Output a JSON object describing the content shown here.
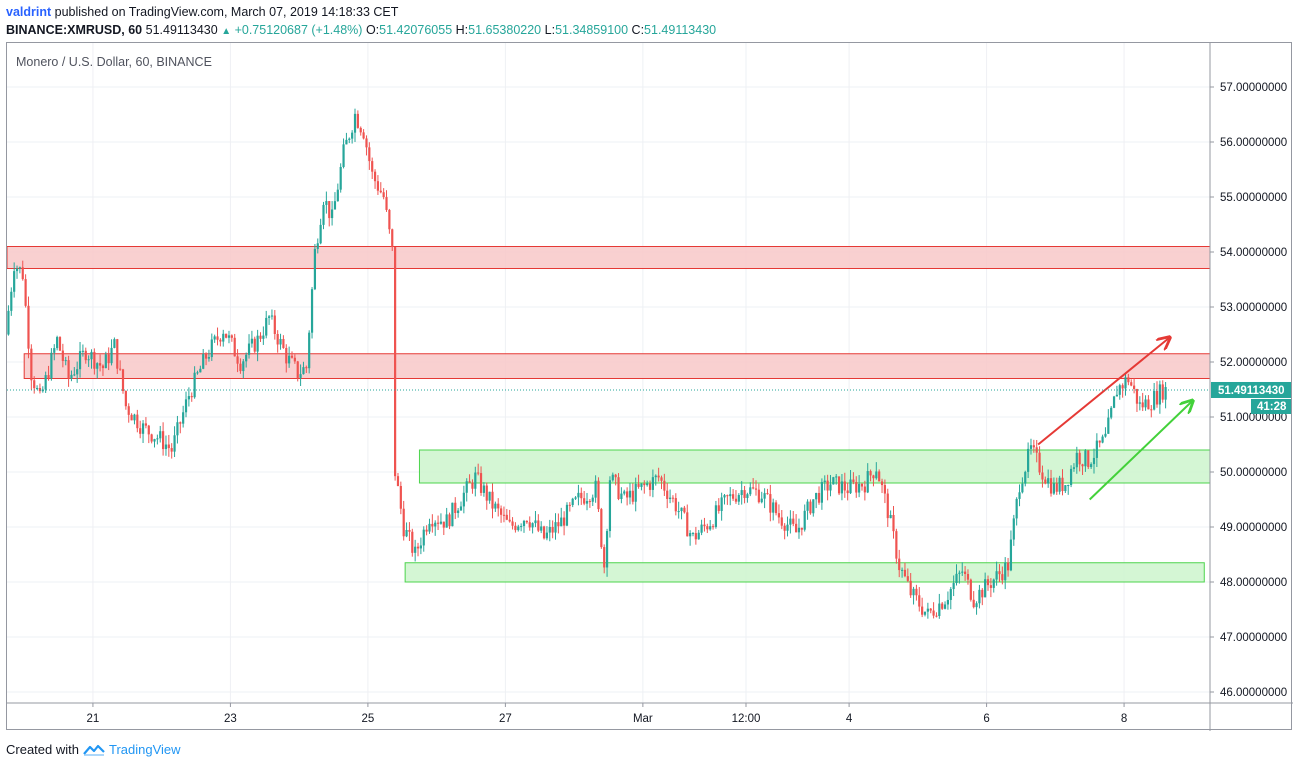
{
  "header": {
    "author": "valdrint",
    "published_text": "published on TradingView.com, March 07, 2019 14:18:33 CET",
    "symbol": "BINANCE:XMRUSD, 60",
    "last": "51.49113430",
    "change_arrow": "▲",
    "change": "+0.75120687 (+1.48%)",
    "o_label": "O:",
    "o_value": "51.42076055",
    "h_label": "H:",
    "h_value": "51.65380220",
    "l_label": "L:",
    "l_value": "51.34859100",
    "c_label": "C:",
    "c_value": "51.49113430"
  },
  "footer": {
    "created_with": "Created with",
    "brand": "TradingView",
    "logo_icon": "tradingview-logo-icon"
  },
  "chart_data": {
    "type": "candlestick",
    "title": "Monero / U.S. Dollar, 60, BINANCE",
    "y_axis": {
      "min": 45.8,
      "max": 57.8,
      "ticks": [
        46,
        47,
        48,
        49,
        50,
        51,
        52,
        53,
        54,
        55,
        56,
        57
      ],
      "tick_labels": [
        "46.00000000",
        "47.00000000",
        "48.00000000",
        "49.00000000",
        "50.00000000",
        "51.00000000",
        "52.00000000",
        "53.00000000",
        "54.00000000",
        "55.00000000",
        "56.00000000",
        "57.00000000"
      ]
    },
    "x_axis": {
      "start": "2019-02-19 18:00",
      "end": "2019-03-09 06:00",
      "ticks": [
        {
          "label": "21",
          "t": "2019-02-21 00:00"
        },
        {
          "label": "23",
          "t": "2019-02-23 00:00"
        },
        {
          "label": "25",
          "t": "2019-02-25 00:00"
        },
        {
          "label": "27",
          "t": "2019-02-27 00:00"
        },
        {
          "label": "Mar",
          "t": "2019-03-01 00:00"
        },
        {
          "label": "12:00",
          "t": "2019-03-02 12:00"
        },
        {
          "label": "4",
          "t": "2019-03-04 00:00"
        },
        {
          "label": "6",
          "t": "2019-03-06 00:00"
        },
        {
          "label": "8",
          "t": "2019-03-08 00:00"
        }
      ]
    },
    "price_path": [
      [
        "2019-02-19 18:00",
        52.5
      ],
      [
        "2019-02-19 21:00",
        53.8
      ],
      [
        "2019-02-20 00:00",
        53.6
      ],
      [
        "2019-02-20 03:00",
        51.8
      ],
      [
        "2019-02-20 06:00",
        51.3
      ],
      [
        "2019-02-20 12:00",
        52.4
      ],
      [
        "2019-02-20 16:00",
        51.7
      ],
      [
        "2019-02-20 22:00",
        52.2
      ],
      [
        "2019-02-21 04:00",
        51.9
      ],
      [
        "2019-02-21 08:00",
        52.3
      ],
      [
        "2019-02-21 12:00",
        51.2
      ],
      [
        "2019-02-21 18:00",
        50.8
      ],
      [
        "2019-02-22 00:00",
        50.6
      ],
      [
        "2019-02-22 04:00",
        50.4
      ],
      [
        "2019-02-22 10:00",
        51.4
      ],
      [
        "2019-02-22 16:00",
        52.1
      ],
      [
        "2019-02-22 22:00",
        52.6
      ],
      [
        "2019-02-23 04:00",
        52.0
      ],
      [
        "2019-02-23 10:00",
        52.4
      ],
      [
        "2019-02-23 14:00",
        52.8
      ],
      [
        "2019-02-23 20:00",
        52.1
      ],
      [
        "2019-02-24 00:00",
        51.8
      ],
      [
        "2019-02-24 03:00",
        51.9
      ],
      [
        "2019-02-24 06:00",
        54.0
      ],
      [
        "2019-02-24 09:00",
        55.0
      ],
      [
        "2019-02-24 12:00",
        54.6
      ],
      [
        "2019-02-24 16:00",
        55.8
      ],
      [
        "2019-02-24 20:00",
        56.5
      ],
      [
        "2019-02-24 23:00",
        56.2
      ],
      [
        "2019-02-25 02:00",
        55.4
      ],
      [
        "2019-02-25 06:00",
        55.0
      ],
      [
        "2019-02-25 09:00",
        54.0
      ],
      [
        "2019-02-25 10:00",
        50.0
      ],
      [
        "2019-02-25 13:00",
        49.0
      ],
      [
        "2019-02-25 17:00",
        48.5
      ],
      [
        "2019-02-25 22:00",
        49.2
      ],
      [
        "2019-02-26 04:00",
        49.1
      ],
      [
        "2019-02-26 10:00",
        49.6
      ],
      [
        "2019-02-26 14:00",
        49.9
      ],
      [
        "2019-02-26 20:00",
        49.4
      ],
      [
        "2019-02-27 02:00",
        49.0
      ],
      [
        "2019-02-27 08:00",
        49.2
      ],
      [
        "2019-02-27 14:00",
        48.8
      ],
      [
        "2019-02-27 20:00",
        49.1
      ],
      [
        "2019-02-28 02:00",
        49.5
      ],
      [
        "2019-02-28 08:00",
        49.7
      ],
      [
        "2019-02-28 11:00",
        48.3
      ],
      [
        "2019-02-28 13:00",
        49.9
      ],
      [
        "2019-02-28 18:00",
        49.5
      ],
      [
        "2019-03-01 00:00",
        49.7
      ],
      [
        "2019-03-01 06:00",
        49.9
      ],
      [
        "2019-03-01 12:00",
        49.4
      ],
      [
        "2019-03-01 18:00",
        48.8
      ],
      [
        "2019-03-02 00:00",
        49.1
      ],
      [
        "2019-03-02 06:00",
        49.5
      ],
      [
        "2019-03-02 12:00",
        49.7
      ],
      [
        "2019-03-02 18:00",
        49.6
      ],
      [
        "2019-03-03 00:00",
        49.2
      ],
      [
        "2019-03-03 06:00",
        48.9
      ],
      [
        "2019-03-03 12:00",
        49.5
      ],
      [
        "2019-03-03 18:00",
        49.8
      ],
      [
        "2019-03-04 00:00",
        49.7
      ],
      [
        "2019-03-04 06:00",
        49.8
      ],
      [
        "2019-03-04 10:00",
        50.1
      ],
      [
        "2019-03-04 14:00",
        49.3
      ],
      [
        "2019-03-04 18:00",
        48.3
      ],
      [
        "2019-03-04 22:00",
        47.8
      ],
      [
        "2019-03-05 04:00",
        47.4
      ],
      [
        "2019-03-05 10:00",
        47.7
      ],
      [
        "2019-03-05 16:00",
        48.2
      ],
      [
        "2019-03-05 20:00",
        47.7
      ],
      [
        "2019-03-06 02:00",
        48.0
      ],
      [
        "2019-03-06 08:00",
        48.3
      ],
      [
        "2019-03-06 12:00",
        49.8
      ],
      [
        "2019-03-06 16:00",
        50.4
      ],
      [
        "2019-03-06 20:00",
        50.0
      ],
      [
        "2019-03-07 00:00",
        49.7
      ],
      [
        "2019-03-07 04:00",
        49.8
      ],
      [
        "2019-03-07 08:00",
        50.3
      ],
      [
        "2019-03-07 12:00",
        50.2
      ],
      [
        "2019-03-07 18:00",
        50.6
      ],
      [
        "2019-03-07 22:00",
        51.5
      ],
      [
        "2019-03-08 02:00",
        51.7
      ],
      [
        "2019-03-08 06:00",
        51.2
      ],
      [
        "2019-03-08 10:00",
        51.3
      ],
      [
        "2019-03-08 14:00",
        51.49
      ]
    ],
    "zones": [
      {
        "kind": "resistance",
        "from": "2019-02-19 18:00",
        "to": "2019-03-09 06:00",
        "low": 53.7,
        "high": 54.1
      },
      {
        "kind": "resistance",
        "from": "2019-02-20 00:00",
        "to": "2019-03-09 06:00",
        "low": 51.7,
        "high": 52.15
      },
      {
        "kind": "support",
        "from": "2019-02-25 18:00",
        "to": "2019-03-09 06:00",
        "low": 49.8,
        "high": 50.4
      },
      {
        "kind": "support",
        "from": "2019-02-25 13:00",
        "to": "2019-03-09 04:00",
        "low": 48.0,
        "high": 48.35
      }
    ],
    "trend_lines": [
      {
        "color": "#e53935",
        "from": [
          "2019-03-06 18:00",
          50.5
        ],
        "to": [
          "2019-03-08 16:00",
          52.45
        ]
      },
      {
        "color": "#43d13a",
        "from": [
          "2019-03-07 12:00",
          49.5
        ],
        "to": [
          "2019-03-09 00:00",
          51.3
        ]
      }
    ],
    "last_price": {
      "value": 51.4911343,
      "label": "51.49113430",
      "countdown": "41:28"
    },
    "colors": {
      "up": "#26a69a",
      "down": "#ef5350",
      "resistance_fill": "#f8c8c8",
      "resistance_stroke": "#e53935",
      "support_fill": "#ccf5cc",
      "support_stroke": "#4cd44c",
      "grid": "#eef0f4",
      "axis_text": "#131722"
    }
  }
}
